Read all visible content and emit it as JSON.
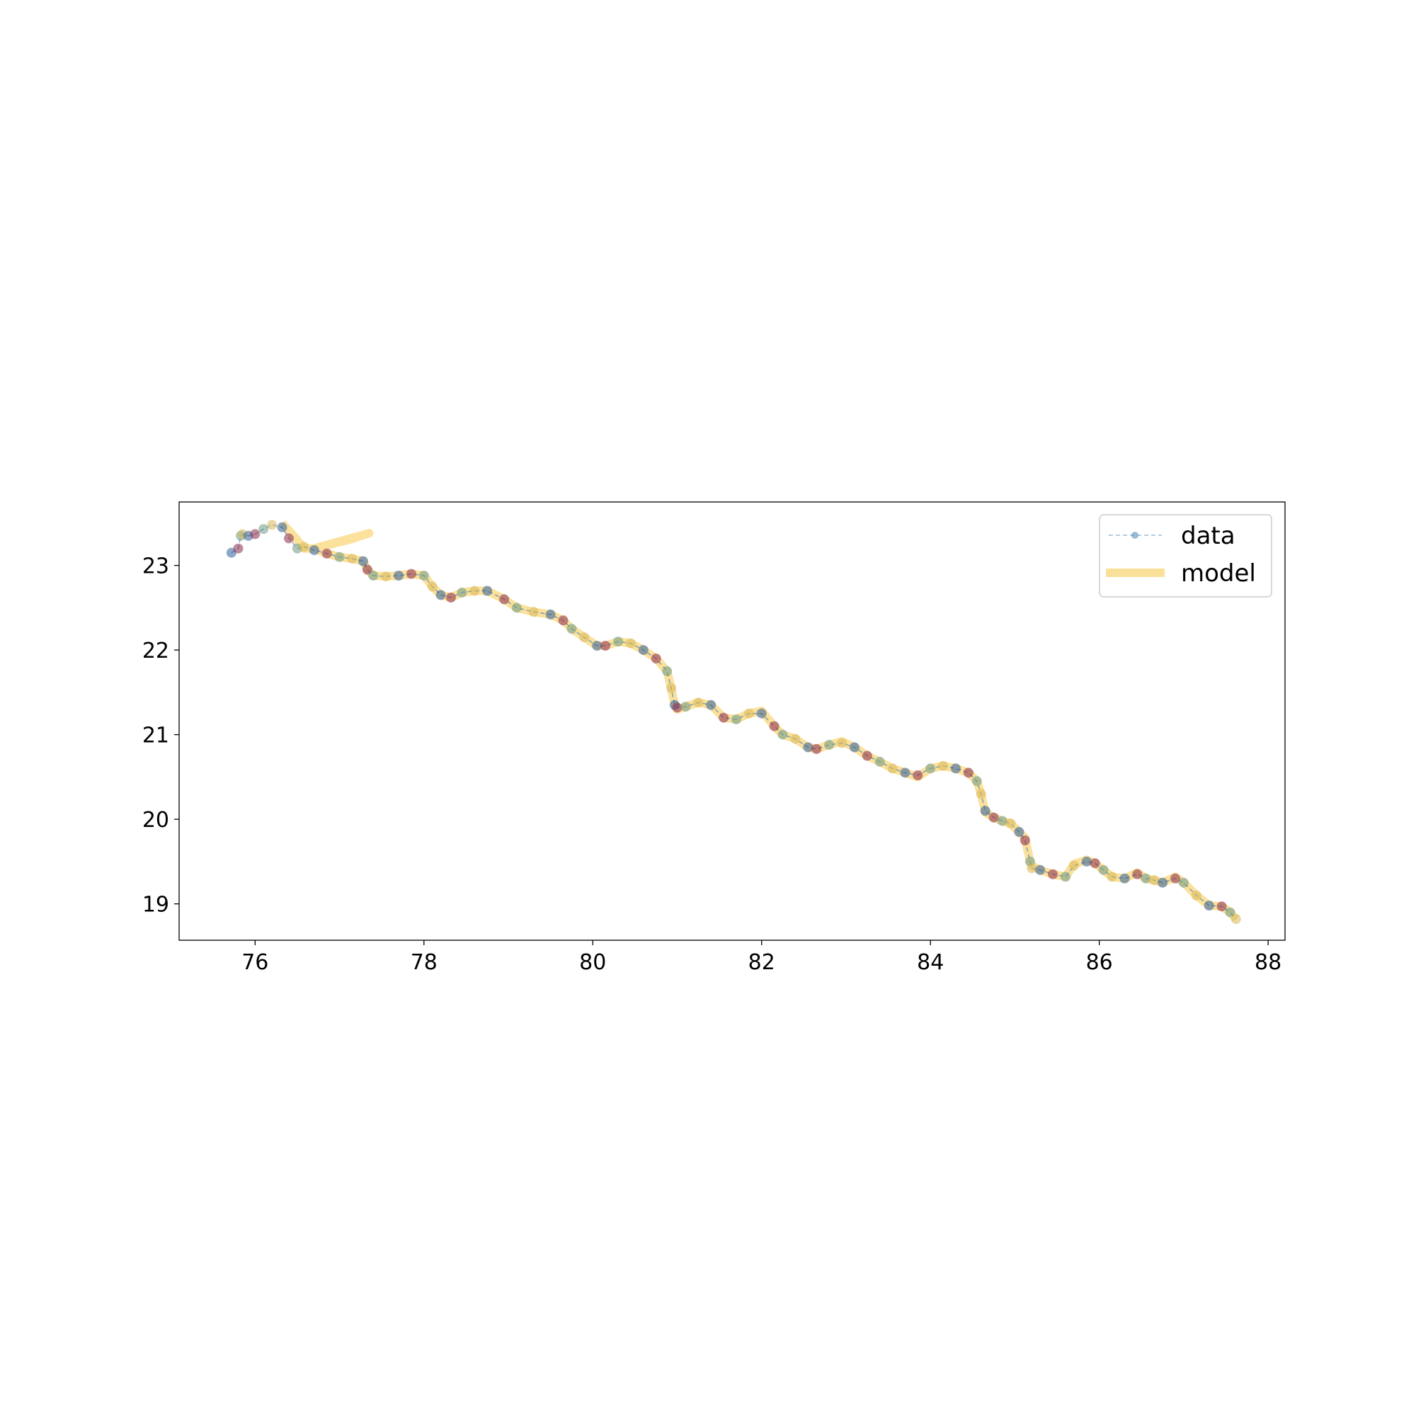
{
  "chart_data": {
    "type": "line",
    "title": "",
    "xlabel": "",
    "ylabel": "",
    "xlim": [
      75.1,
      88.2
    ],
    "ylim": [
      18.57,
      23.75
    ],
    "xticks": [
      76,
      78,
      80,
      82,
      84,
      86,
      88
    ],
    "yticks": [
      19,
      20,
      21,
      22,
      23
    ],
    "grid": false,
    "legend_position": "top-right",
    "colors": {
      "data": "#5b8fb8",
      "data_marker_colors": [
        "#2f5f9a",
        "#8a2a4a",
        "#6e9a86",
        "#d9b85a"
      ],
      "model": "#f7c948"
    },
    "series": [
      {
        "name": "data",
        "style": "dashed line with circle markers",
        "x": [
          75.72,
          75.8,
          75.83,
          75.85,
          75.92,
          76.0,
          76.1,
          76.2,
          76.32,
          76.4,
          76.5,
          76.58,
          76.7,
          76.85,
          77.0,
          77.15,
          77.28,
          77.33,
          77.4,
          77.55,
          77.7,
          77.85,
          78.0,
          78.1,
          78.2,
          78.32,
          78.45,
          78.6,
          78.75,
          78.95,
          79.1,
          79.3,
          79.5,
          79.65,
          79.75,
          79.9,
          80.05,
          80.15,
          80.3,
          80.45,
          80.6,
          80.75,
          80.88,
          80.93,
          80.97,
          81.0,
          81.1,
          81.25,
          81.4,
          81.55,
          81.7,
          81.85,
          82.0,
          82.15,
          82.25,
          82.4,
          82.55,
          82.65,
          82.8,
          82.95,
          83.1,
          83.25,
          83.4,
          83.55,
          83.7,
          83.85,
          84.0,
          84.15,
          84.3,
          84.45,
          84.55,
          84.6,
          84.65,
          84.75,
          84.85,
          84.95,
          85.05,
          85.12,
          85.18,
          85.2,
          85.3,
          85.45,
          85.6,
          85.7,
          85.85,
          85.95,
          86.05,
          86.15,
          86.3,
          86.45,
          86.55,
          86.65,
          86.75,
          86.9,
          87.0,
          87.15,
          87.3,
          87.45,
          87.55,
          87.62
        ],
        "y": [
          23.15,
          23.2,
          23.35,
          23.37,
          23.35,
          23.37,
          23.43,
          23.48,
          23.45,
          23.32,
          23.2,
          23.22,
          23.18,
          23.14,
          23.1,
          23.08,
          23.05,
          22.95,
          22.88,
          22.87,
          22.88,
          22.9,
          22.88,
          22.75,
          22.65,
          22.62,
          22.68,
          22.7,
          22.7,
          22.6,
          22.5,
          22.45,
          22.42,
          22.35,
          22.25,
          22.15,
          22.05,
          22.05,
          22.1,
          22.08,
          22.0,
          21.9,
          21.75,
          21.55,
          21.35,
          21.32,
          21.33,
          21.38,
          21.35,
          21.2,
          21.18,
          21.25,
          21.25,
          21.1,
          21.0,
          20.95,
          20.85,
          20.83,
          20.88,
          20.9,
          20.85,
          20.75,
          20.68,
          20.6,
          20.55,
          20.52,
          20.6,
          20.63,
          20.6,
          20.55,
          20.45,
          20.3,
          20.1,
          20.02,
          19.98,
          19.95,
          19.85,
          19.75,
          19.5,
          19.42,
          19.4,
          19.35,
          19.32,
          19.45,
          19.5,
          19.48,
          19.4,
          19.32,
          19.3,
          19.35,
          19.3,
          19.28,
          19.25,
          19.3,
          19.25,
          19.1,
          18.98,
          18.97,
          18.9,
          18.82
        ]
      },
      {
        "name": "model",
        "style": "thick semi-transparent line",
        "x": [
          76.32,
          76.5,
          76.58,
          76.7,
          76.9,
          77.1,
          77.35,
          76.7,
          76.85,
          77.0,
          77.15,
          77.28,
          77.33,
          77.4,
          77.55,
          77.7,
          77.85,
          78.0,
          78.1,
          78.2,
          78.32,
          78.45,
          78.6,
          78.75,
          78.95,
          79.1,
          79.3,
          79.5,
          79.65,
          79.75,
          79.9,
          80.05,
          80.15,
          80.3,
          80.45,
          80.6,
          80.75,
          80.88,
          80.93,
          80.97,
          81.0,
          81.1,
          81.25,
          81.4,
          81.55,
          81.7,
          81.85,
          82.0,
          82.15,
          82.25,
          82.4,
          82.55,
          82.65,
          82.8,
          82.95,
          83.1,
          83.25,
          83.4,
          83.55,
          83.7,
          83.85,
          84.0,
          84.15,
          84.3,
          84.45,
          84.55,
          84.6,
          84.65,
          84.75,
          84.85,
          84.95,
          85.05,
          85.12,
          85.18,
          85.2,
          85.3,
          85.45,
          85.6,
          85.7,
          85.85,
          85.95,
          86.05,
          86.15,
          86.3,
          86.45,
          86.55,
          86.65,
          86.75,
          86.9,
          87.0,
          87.15,
          87.3,
          87.45,
          87.55,
          87.62
        ],
        "y": [
          23.5,
          23.3,
          23.2,
          23.2,
          23.25,
          23.3,
          23.38,
          23.2,
          23.14,
          23.1,
          23.08,
          23.05,
          22.95,
          22.88,
          22.87,
          22.88,
          22.9,
          22.88,
          22.75,
          22.65,
          22.62,
          22.68,
          22.7,
          22.7,
          22.6,
          22.5,
          22.45,
          22.42,
          22.35,
          22.25,
          22.15,
          22.05,
          22.05,
          22.1,
          22.08,
          22.0,
          21.9,
          21.75,
          21.55,
          21.35,
          21.3,
          21.33,
          21.38,
          21.35,
          21.2,
          21.18,
          21.25,
          21.28,
          21.1,
          21.0,
          20.95,
          20.85,
          20.83,
          20.88,
          20.92,
          20.85,
          20.75,
          20.68,
          20.6,
          20.55,
          20.5,
          20.6,
          20.63,
          20.6,
          20.55,
          20.45,
          20.3,
          20.08,
          20.02,
          19.98,
          19.95,
          19.85,
          19.78,
          19.5,
          19.45,
          19.4,
          19.35,
          19.32,
          19.47,
          19.52,
          19.48,
          19.4,
          19.32,
          19.3,
          19.37,
          19.3,
          19.28,
          19.25,
          19.32,
          19.25,
          19.1,
          18.98,
          18.97,
          18.9,
          18.82
        ]
      }
    ]
  }
}
